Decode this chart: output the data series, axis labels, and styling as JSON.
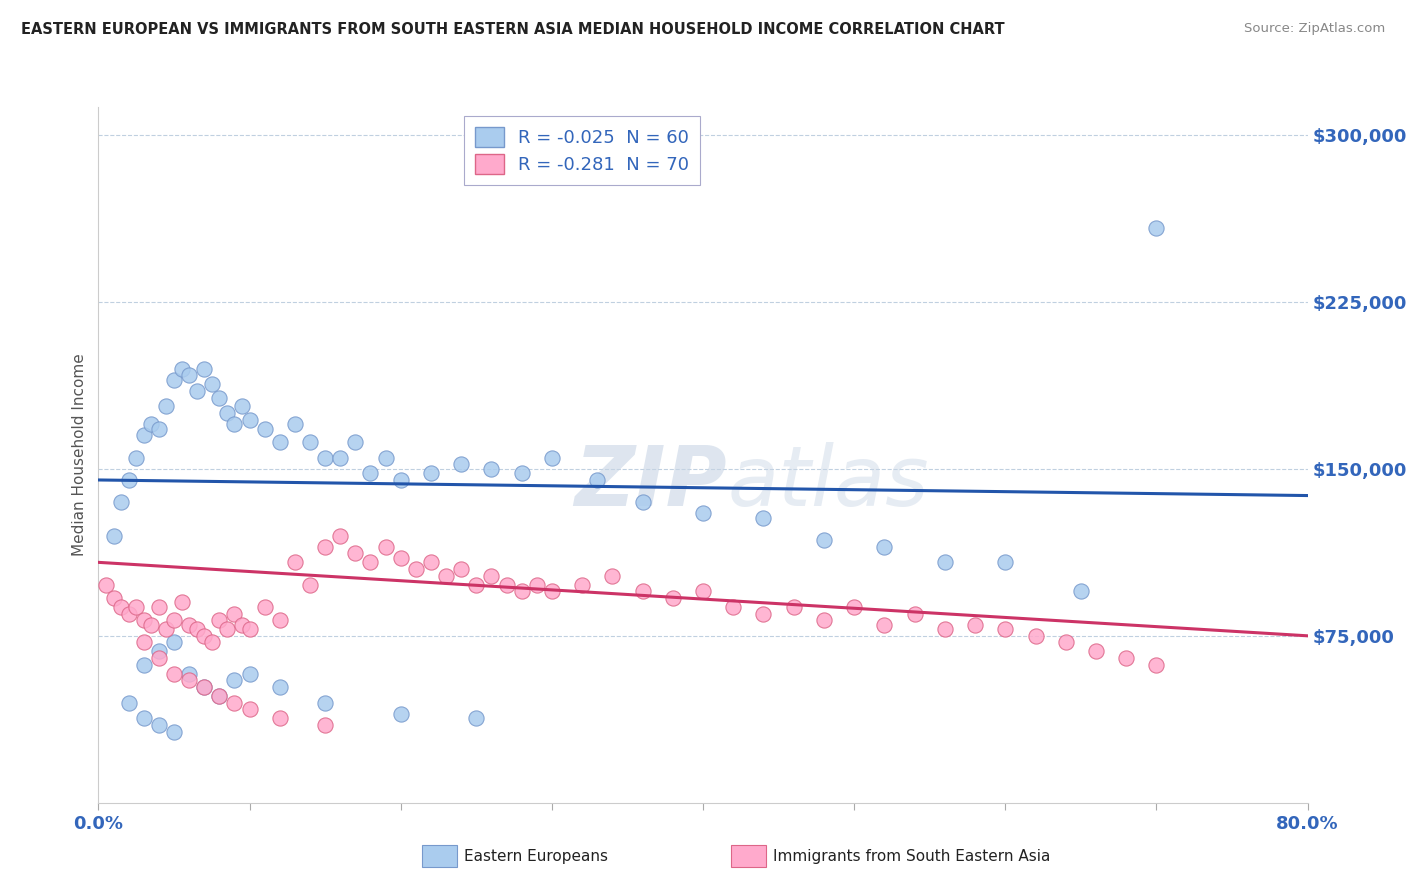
{
  "title": "EASTERN EUROPEAN VS IMMIGRANTS FROM SOUTH EASTERN ASIA MEDIAN HOUSEHOLD INCOME CORRELATION CHART",
  "source": "Source: ZipAtlas.com",
  "ylabel": "Median Household Income",
  "yticks": [
    0,
    75000,
    150000,
    225000,
    300000
  ],
  "ytick_labels": [
    "",
    "$75,000",
    "$150,000",
    "$225,000",
    "$300,000"
  ],
  "xtick_positions": [
    0,
    10,
    20,
    30,
    40,
    50,
    60,
    70,
    80
  ],
  "xtick_edge_labels": {
    "0": "0.0%",
    "80": "80.0%"
  },
  "xlim": [
    0.0,
    80.0
  ],
  "ylim": [
    0,
    312500
  ],
  "series1_name": "Eastern Europeans",
  "series1_R": -0.025,
  "series1_N": 60,
  "series1_color": "#aaccee",
  "series1_edge": "#7799cc",
  "series1_line_color": "#2255aa",
  "series2_name": "Immigrants from South Eastern Asia",
  "series2_R": -0.281,
  "series2_N": 70,
  "series2_color": "#ffaacc",
  "series2_edge": "#dd6688",
  "series2_line_color": "#cc3366",
  "watermark_zip": "ZIP",
  "watermark_atlas": "atlas",
  "background_color": "#ffffff",
  "grid_color": "#c0d0e0",
  "axis_color": "#3366bb",
  "title_color": "#222222",
  "legend_text_color": "#3366bb",
  "series1_x": [
    1.0,
    1.5,
    2.0,
    2.5,
    3.0,
    3.5,
    4.0,
    4.5,
    5.0,
    5.5,
    6.0,
    6.5,
    7.0,
    7.5,
    8.0,
    8.5,
    9.0,
    9.5,
    10.0,
    11.0,
    12.0,
    13.0,
    14.0,
    15.0,
    16.0,
    17.0,
    18.0,
    19.0,
    20.0,
    22.0,
    24.0,
    26.0,
    28.0,
    30.0,
    33.0,
    36.0,
    40.0,
    44.0,
    48.0,
    52.0,
    56.0,
    60.0,
    65.0,
    70.0,
    3.0,
    4.0,
    5.0,
    6.0,
    7.0,
    8.0,
    9.0,
    10.0,
    12.0,
    15.0,
    20.0,
    25.0,
    2.0,
    3.0,
    4.0,
    5.0
  ],
  "series1_y": [
    120000,
    135000,
    145000,
    155000,
    165000,
    170000,
    168000,
    178000,
    190000,
    195000,
    192000,
    185000,
    195000,
    188000,
    182000,
    175000,
    170000,
    178000,
    172000,
    168000,
    162000,
    170000,
    162000,
    155000,
    155000,
    162000,
    148000,
    155000,
    145000,
    148000,
    152000,
    150000,
    148000,
    155000,
    145000,
    135000,
    130000,
    128000,
    118000,
    115000,
    108000,
    108000,
    95000,
    258000,
    62000,
    68000,
    72000,
    58000,
    52000,
    48000,
    55000,
    58000,
    52000,
    45000,
    40000,
    38000,
    45000,
    38000,
    35000,
    32000
  ],
  "series2_x": [
    0.5,
    1.0,
    1.5,
    2.0,
    2.5,
    3.0,
    3.5,
    4.0,
    4.5,
    5.0,
    5.5,
    6.0,
    6.5,
    7.0,
    7.5,
    8.0,
    8.5,
    9.0,
    9.5,
    10.0,
    11.0,
    12.0,
    13.0,
    14.0,
    15.0,
    16.0,
    17.0,
    18.0,
    19.0,
    20.0,
    21.0,
    22.0,
    23.0,
    24.0,
    25.0,
    26.0,
    27.0,
    28.0,
    29.0,
    30.0,
    32.0,
    34.0,
    36.0,
    38.0,
    40.0,
    42.0,
    44.0,
    46.0,
    48.0,
    50.0,
    52.0,
    54.0,
    56.0,
    58.0,
    60.0,
    62.0,
    64.0,
    66.0,
    68.0,
    70.0,
    3.0,
    4.0,
    5.0,
    6.0,
    7.0,
    8.0,
    9.0,
    10.0,
    12.0,
    15.0
  ],
  "series2_y": [
    98000,
    92000,
    88000,
    85000,
    88000,
    82000,
    80000,
    88000,
    78000,
    82000,
    90000,
    80000,
    78000,
    75000,
    72000,
    82000,
    78000,
    85000,
    80000,
    78000,
    88000,
    82000,
    108000,
    98000,
    115000,
    120000,
    112000,
    108000,
    115000,
    110000,
    105000,
    108000,
    102000,
    105000,
    98000,
    102000,
    98000,
    95000,
    98000,
    95000,
    98000,
    102000,
    95000,
    92000,
    95000,
    88000,
    85000,
    88000,
    82000,
    88000,
    80000,
    85000,
    78000,
    80000,
    78000,
    75000,
    72000,
    68000,
    65000,
    62000,
    72000,
    65000,
    58000,
    55000,
    52000,
    48000,
    45000,
    42000,
    38000,
    35000
  ],
  "trend1_x0": 0,
  "trend1_x1": 80,
  "trend1_y0": 145000,
  "trend1_y1": 138000,
  "trend2_x0": 0,
  "trend2_x1": 80,
  "trend2_y0": 108000,
  "trend2_y1": 75000
}
